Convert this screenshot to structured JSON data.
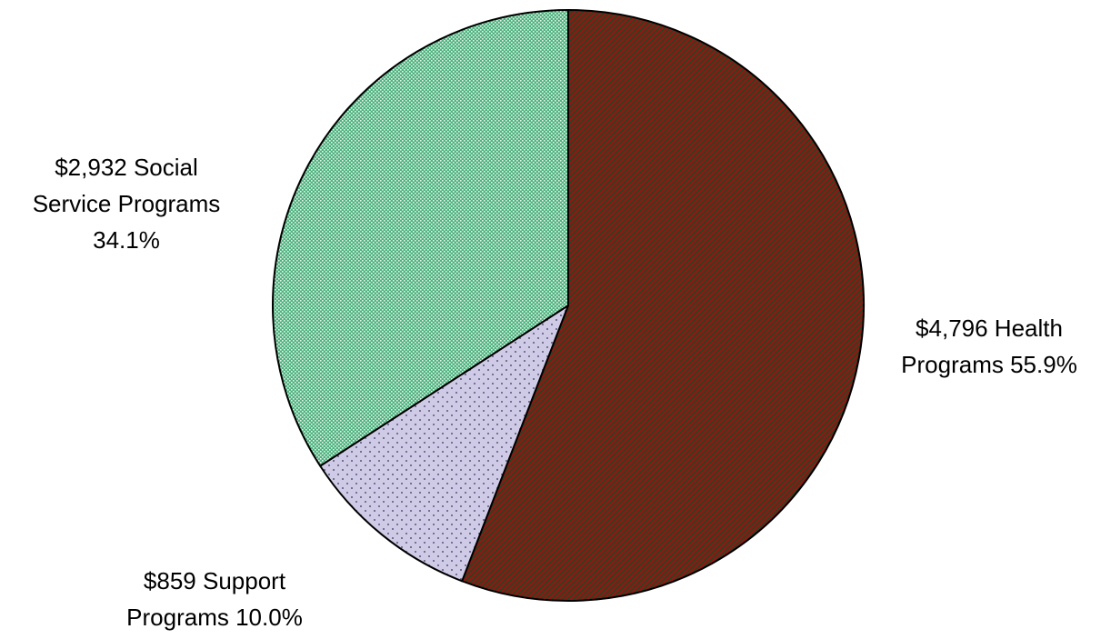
{
  "chart_data": {
    "type": "pie",
    "title": "",
    "start": "12 o'clock, clockwise",
    "slices": [
      {
        "name": "Health Programs",
        "value": 4796,
        "percent": 55.9,
        "label_lines": [
          "$4,796 Health",
          "Programs 55.9%"
        ],
        "color": "#8b1a14",
        "pattern": "diagonal-hatch"
      },
      {
        "name": "Support Programs",
        "value": 859,
        "percent": 10.0,
        "label_lines": [
          "$859 Support",
          "Programs 10.0%"
        ],
        "color": "#cfcbe6",
        "pattern": "dots"
      },
      {
        "name": "Social Service Programs",
        "value": 2932,
        "percent": 34.1,
        "label_lines": [
          "$2,932 Social",
          "Service Programs",
          "34.1%"
        ],
        "color": "#4db27e",
        "pattern": "fine-grid"
      }
    ]
  }
}
